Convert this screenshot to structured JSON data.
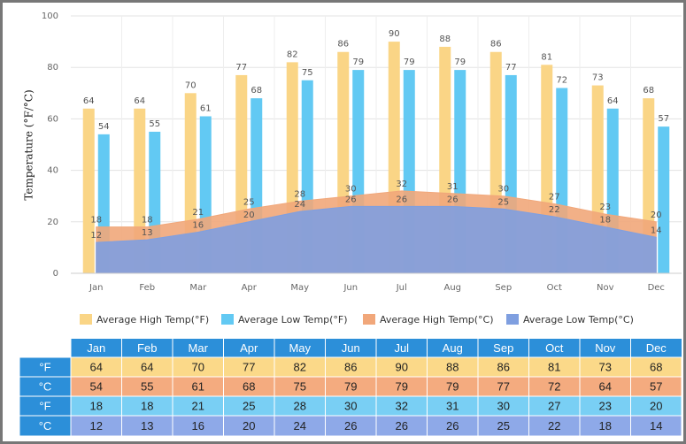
{
  "chart_data": {
    "type": "combo",
    "y_label": "Temperature (°F/°C)",
    "categories": [
      "Jan",
      "Feb",
      "Mar",
      "Apr",
      "May",
      "Jun",
      "Jul",
      "Aug",
      "Sep",
      "Oct",
      "Nov",
      "Dec"
    ],
    "ylim": [
      0,
      100
    ],
    "yticks": [
      0,
      20,
      40,
      60,
      80,
      100
    ],
    "grid": true,
    "series": [
      {
        "name": "Average High Temp(°F)",
        "type": "bar",
        "color": "#fad586",
        "values": [
          64,
          64,
          70,
          77,
          82,
          86,
          90,
          88,
          86,
          81,
          73,
          68
        ]
      },
      {
        "name": "Average Low Temp(°F)",
        "type": "bar",
        "color": "#62c9f3",
        "values": [
          54,
          55,
          61,
          68,
          75,
          79,
          79,
          79,
          77,
          72,
          64,
          57
        ]
      },
      {
        "name": "Average High Temp(°C)",
        "type": "area",
        "color": "#f1a77a",
        "values": [
          18,
          18,
          21,
          25,
          28,
          30,
          32,
          31,
          30,
          27,
          23,
          20
        ]
      },
      {
        "name": "Average Low Temp(°C)",
        "type": "area",
        "color": "#7f9fe0",
        "values": [
          12,
          13,
          16,
          20,
          24,
          26,
          26,
          26,
          25,
          22,
          18,
          14
        ]
      }
    ]
  },
  "table": {
    "row_labels": [
      "°F",
      "°C",
      "°F",
      "°C"
    ]
  }
}
